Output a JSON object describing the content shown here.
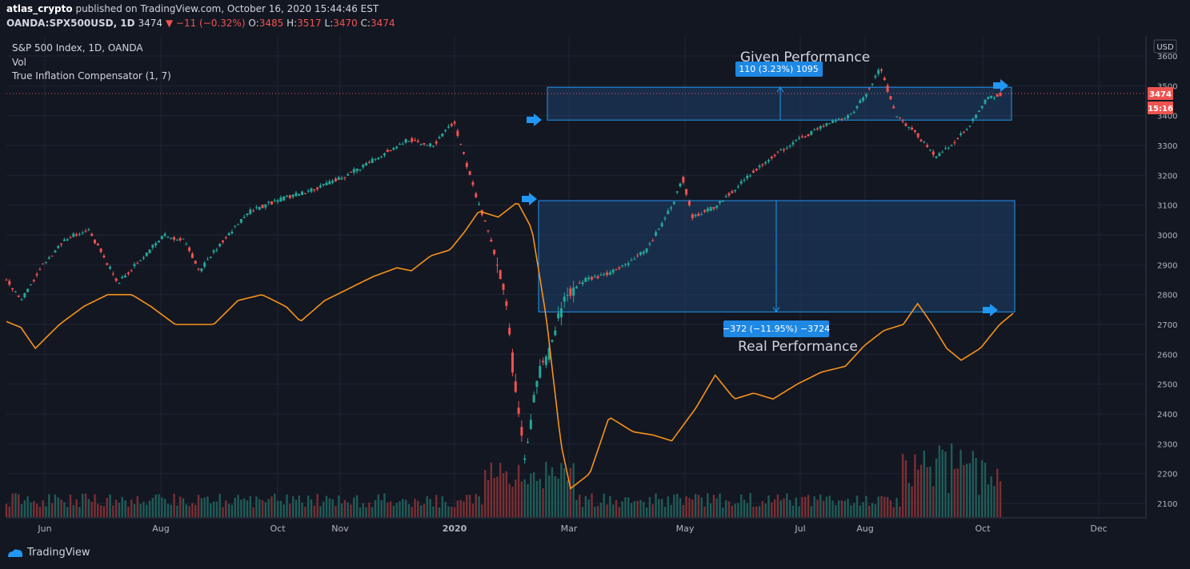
{
  "header": {
    "author": "atlas_crypto",
    "published": "published on TradingView.com, October 16, 2020 15:44:46 EST",
    "symbol": "OANDA:SPX500USD, 1D",
    "last": "3474",
    "change": "−11 (−0.32%)",
    "o_label": "O:",
    "o": "3485",
    "h_label": "H:",
    "h": "3517",
    "l_label": "L:",
    "l": "3470",
    "c_label": "C:",
    "c": "3474"
  },
  "legend": {
    "title": "S&P 500 Index, 1D, OANDA",
    "vol": "Vol",
    "indicator": "True Inflation Compensator (1, 7)"
  },
  "price_axis": {
    "currency": "USD",
    "ticks": [
      "3600",
      "3500",
      "3400",
      "3300",
      "3200",
      "3100",
      "3000",
      "2900",
      "2800",
      "2700",
      "2600",
      "2500",
      "2400",
      "2300",
      "2200",
      "2100"
    ],
    "last_price": "3474",
    "countdown": "15:16"
  },
  "time_axis": {
    "labels": [
      "Jun",
      "Aug",
      "Oct",
      "Nov",
      "2020",
      "Mar",
      "May",
      "Jul",
      "Aug",
      "Oct",
      "Dec"
    ]
  },
  "annotations": {
    "given_title": "Given Performance",
    "given_label": "110 (3.23%) 1095",
    "real_title": "Real Performance",
    "real_label": "−372 (−11.95%) −3724"
  },
  "colors": {
    "up": "#26a69a",
    "down": "#ef5350",
    "indicator": "#f7931a",
    "zone_fill": "#1e4a7a",
    "zone_line": "#2196f3",
    "arrow": "#2196f3",
    "background": "#131722"
  },
  "branding": {
    "logo_text": "TradingView"
  },
  "chart_data": {
    "type": "candlestick",
    "ylim": [
      2080,
      3630
    ],
    "x_range_months": [
      "2019-05",
      "2020-12"
    ],
    "price_anchors": [
      [
        0,
        2850
      ],
      [
        15,
        2780
      ],
      [
        35,
        2900
      ],
      [
        60,
        2990
      ],
      [
        80,
        3020
      ],
      [
        90,
        2960
      ],
      [
        110,
        2840
      ],
      [
        130,
        2910
      ],
      [
        155,
        3000
      ],
      [
        175,
        2980
      ],
      [
        190,
        2880
      ],
      [
        210,
        2970
      ],
      [
        240,
        3080
      ],
      [
        270,
        3120
      ],
      [
        300,
        3150
      ],
      [
        335,
        3200
      ],
      [
        365,
        3260
      ],
      [
        395,
        3320
      ],
      [
        420,
        3300
      ],
      [
        440,
        3380
      ],
      [
        460,
        3150
      ],
      [
        475,
        3000
      ],
      [
        490,
        2800
      ],
      [
        500,
        2500
      ],
      [
        510,
        2240
      ],
      [
        520,
        2500
      ],
      [
        535,
        2620
      ],
      [
        550,
        2800
      ],
      [
        570,
        2850
      ],
      [
        600,
        2880
      ],
      [
        630,
        2950
      ],
      [
        655,
        3100
      ],
      [
        665,
        3190
      ],
      [
        675,
        3060
      ],
      [
        700,
        3100
      ],
      [
        730,
        3200
      ],
      [
        760,
        3280
      ],
      [
        790,
        3340
      ],
      [
        810,
        3380
      ],
      [
        830,
        3400
      ],
      [
        845,
        3470
      ],
      [
        860,
        3560
      ],
      [
        875,
        3400
      ],
      [
        895,
        3340
      ],
      [
        915,
        3260
      ],
      [
        935,
        3320
      ],
      [
        950,
        3380
      ],
      [
        965,
        3460
      ],
      [
        980,
        3474
      ]
    ],
    "indicator_anchors": [
      [
        0,
        2710
      ],
      [
        15,
        2690
      ],
      [
        30,
        2620
      ],
      [
        55,
        2700
      ],
      [
        80,
        2760
      ],
      [
        105,
        2800
      ],
      [
        130,
        2800
      ],
      [
        150,
        2760
      ],
      [
        175,
        2700
      ],
      [
        195,
        2700
      ],
      [
        215,
        2700
      ],
      [
        240,
        2780
      ],
      [
        265,
        2800
      ],
      [
        290,
        2760
      ],
      [
        305,
        2710
      ],
      [
        330,
        2780
      ],
      [
        355,
        2820
      ],
      [
        380,
        2860
      ],
      [
        405,
        2890
      ],
      [
        420,
        2880
      ],
      [
        440,
        2930
      ],
      [
        460,
        2950
      ],
      [
        475,
        3010
      ],
      [
        490,
        3080
      ],
      [
        510,
        3060
      ],
      [
        530,
        3110
      ],
      [
        545,
        3020
      ],
      [
        560,
        2720
      ],
      [
        575,
        2300
      ],
      [
        585,
        2150
      ],
      [
        605,
        2200
      ],
      [
        625,
        2390
      ],
      [
        650,
        2340
      ],
      [
        670,
        2330
      ],
      [
        690,
        2310
      ],
      [
        715,
        2420
      ],
      [
        735,
        2530
      ],
      [
        755,
        2450
      ],
      [
        775,
        2470
      ],
      [
        795,
        2450
      ],
      [
        820,
        2500
      ],
      [
        845,
        2540
      ],
      [
        870,
        2560
      ],
      [
        890,
        2630
      ],
      [
        910,
        2680
      ],
      [
        930,
        2700
      ],
      [
        945,
        2770
      ],
      [
        960,
        2700
      ],
      [
        975,
        2620
      ],
      [
        990,
        2580
      ],
      [
        1010,
        2620
      ],
      [
        1030,
        2700
      ],
      [
        1045,
        2740
      ]
    ],
    "given_zone": {
      "x_start": "2020-02-19",
      "x_end": "2020-10-16",
      "y_top": 3495,
      "y_bottom": 3385,
      "change": 110,
      "change_pct": 3.23,
      "bars": 1095
    },
    "real_zone": {
      "x_start": "2020-02-15",
      "x_end": "2020-10-16",
      "y_top": 3115,
      "y_bottom": 2742,
      "change": -372,
      "change_pct": -11.95,
      "bars": -3724
    },
    "arrow_marks": [
      {
        "x": "2020-02-19",
        "y": 3392
      },
      {
        "x": "2020-02-15",
        "y": 3115
      },
      {
        "x": "2020-10-14",
        "y": 3500
      },
      {
        "x": "2020-10-12",
        "y": 2745
      }
    ]
  }
}
